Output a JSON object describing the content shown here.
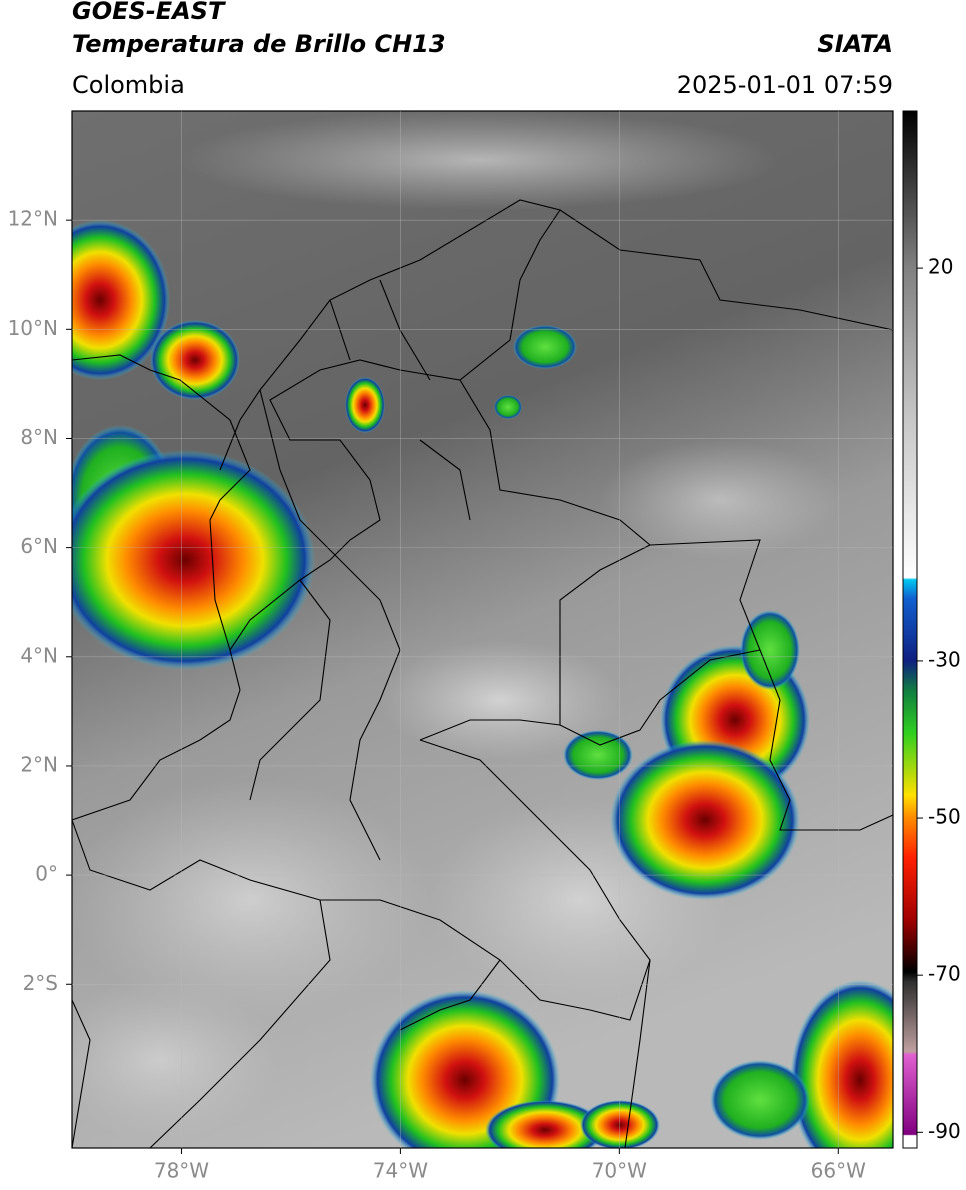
{
  "header": {
    "title_line1": "GOES-EAST",
    "title_line2": "Temperatura de Brillo CH13",
    "source": "SIATA",
    "region": "Colombia",
    "timestamp": "2025-01-01 07:59"
  },
  "map": {
    "lon_range": [
      -80,
      -65
    ],
    "lat_range": [
      -5,
      14
    ],
    "lon_ticks": [
      {
        "value": -78,
        "label": "78°W"
      },
      {
        "value": -74,
        "label": "74°W"
      },
      {
        "value": -70,
        "label": "70°W"
      },
      {
        "value": -66,
        "label": "66°W"
      }
    ],
    "lat_ticks": [
      {
        "value": 12,
        "label": "12°N"
      },
      {
        "value": 10,
        "label": "10°N"
      },
      {
        "value": 8,
        "label": "8°N"
      },
      {
        "value": 6,
        "label": "6°N"
      },
      {
        "value": 4,
        "label": "4°N"
      },
      {
        "value": 2,
        "label": "2°N"
      },
      {
        "value": 0,
        "label": "0°"
      },
      {
        "value": -2,
        "label": "2°S"
      }
    ]
  },
  "colorbar": {
    "range": [
      -92,
      40
    ],
    "ticks": [
      20,
      -30,
      -50,
      -70,
      -90
    ]
  }
}
